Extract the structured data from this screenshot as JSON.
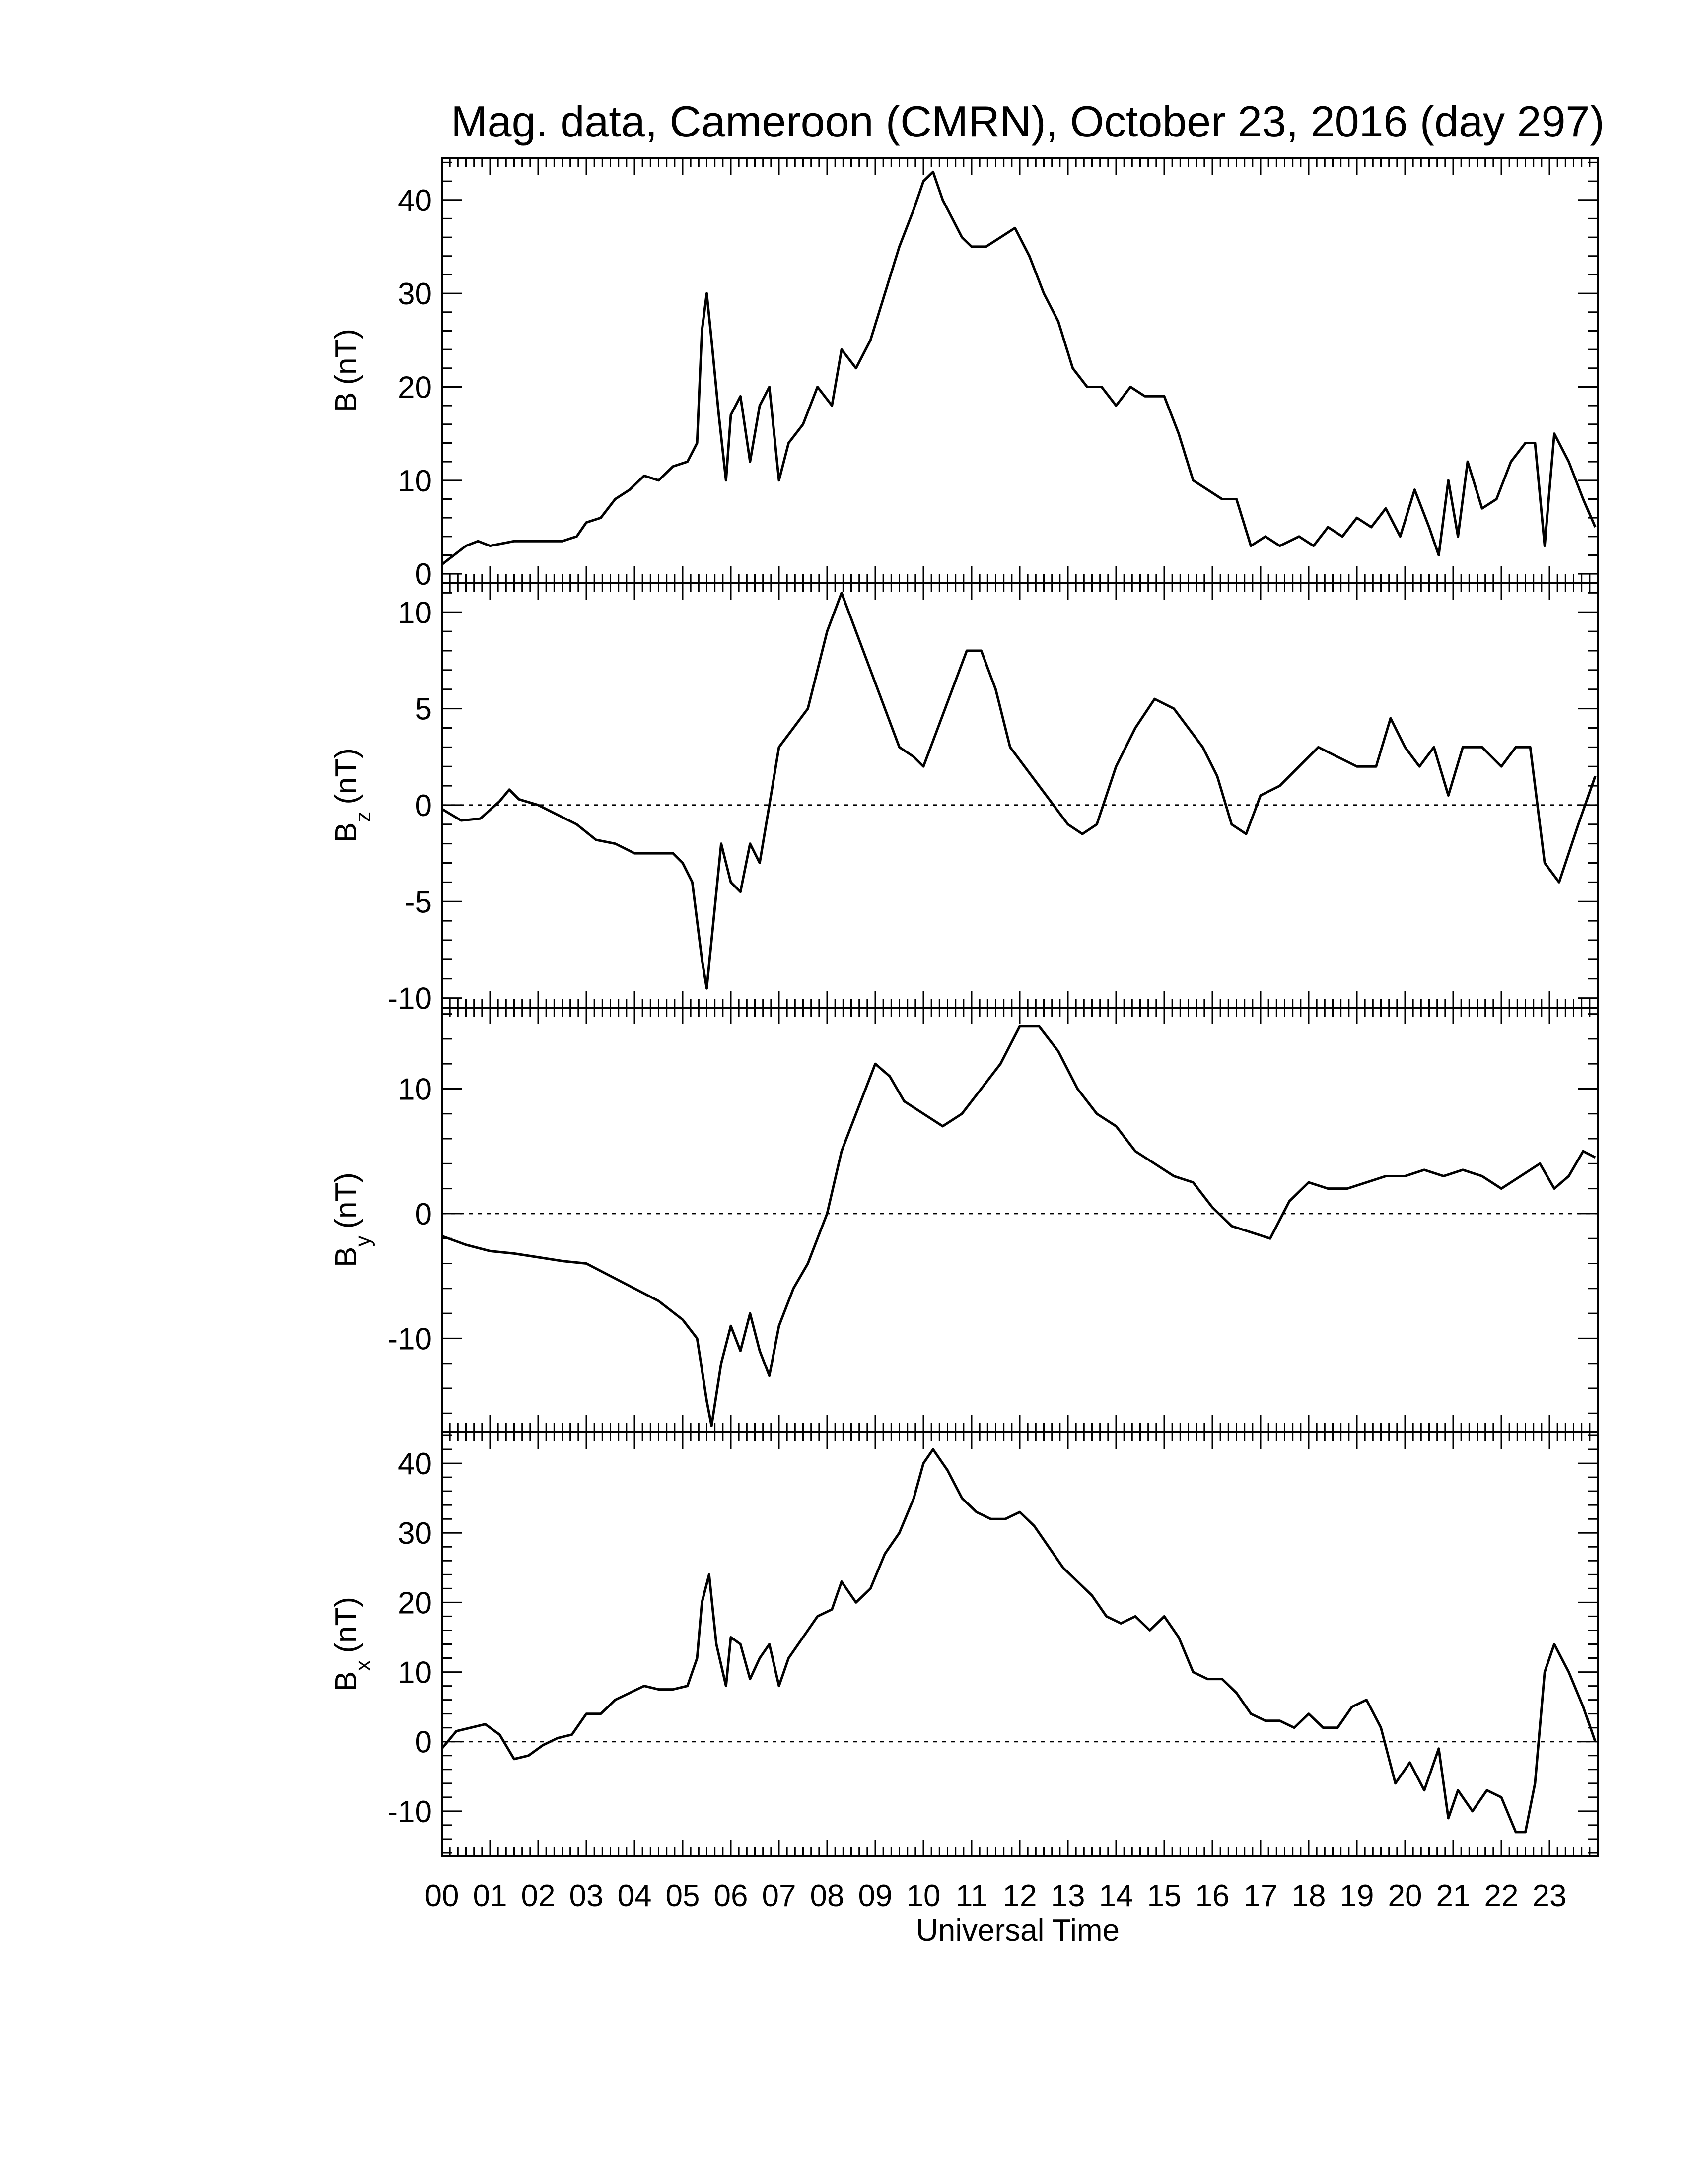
{
  "title": "Mag. data, Cameroon (CMRN), October 23, 2016 (day 297)",
  "colors": {
    "trace": "#000000",
    "frame": "#000000",
    "zero_line": "#000000",
    "background": "#ffffff"
  },
  "chart_data": [
    {
      "type": "line",
      "panel": "B",
      "ylabel": {
        "main": "B",
        "sub": "",
        "unit": "(nT)"
      },
      "ylim": [
        -1,
        44.5
      ],
      "yticks": [
        0,
        10,
        20,
        30,
        40
      ],
      "ytick_labels": [
        "0",
        "10",
        "20",
        "30",
        "40"
      ],
      "zero_line": false,
      "x": [
        0,
        0.25,
        0.5,
        0.75,
        1,
        1.5,
        2,
        2.5,
        2.8,
        3,
        3.3,
        3.6,
        3.9,
        4.2,
        4.5,
        4.8,
        5.1,
        5.3,
        5.4,
        5.5,
        5.6,
        5.75,
        5.9,
        6.0,
        6.2,
        6.4,
        6.6,
        6.8,
        7.0,
        7.2,
        7.5,
        7.8,
        8.1,
        8.3,
        8.6,
        8.9,
        9.2,
        9.5,
        9.8,
        10.0,
        10.2,
        10.4,
        10.6,
        10.8,
        11.0,
        11.3,
        11.6,
        11.9,
        12.2,
        12.5,
        12.8,
        13.1,
        13.4,
        13.7,
        14.0,
        14.3,
        14.6,
        15.0,
        15.3,
        15.6,
        15.9,
        16.2,
        16.5,
        16.8,
        17.1,
        17.4,
        17.8,
        18.1,
        18.4,
        18.7,
        19.0,
        19.3,
        19.6,
        19.9,
        20.2,
        20.5,
        20.7,
        20.9,
        21.1,
        21.3,
        21.6,
        21.9,
        22.2,
        22.5,
        22.7,
        22.9,
        23.1,
        23.4,
        23.7,
        23.95
      ],
      "y": [
        1,
        2,
        3,
        3.5,
        3,
        3.5,
        3.5,
        3.5,
        4,
        5.5,
        6,
        8,
        9,
        10.5,
        10,
        11.5,
        12,
        14,
        26,
        30,
        25,
        17,
        10,
        17,
        19,
        12,
        18,
        20,
        10,
        14,
        16,
        20,
        18,
        24,
        22,
        25,
        30,
        35,
        39,
        42,
        43,
        40,
        38,
        36,
        35,
        35,
        36,
        37,
        34,
        30,
        27,
        22,
        20,
        20,
        18,
        20,
        19,
        19,
        15,
        10,
        9,
        8,
        8,
        3,
        4,
        3,
        4,
        3,
        5,
        4,
        6,
        5,
        7,
        4,
        9,
        5,
        2,
        10,
        4,
        12,
        7,
        8,
        12,
        14,
        14,
        3,
        15,
        12,
        8,
        5
      ]
    },
    {
      "type": "line",
      "panel": "Bz",
      "ylabel": {
        "main": "B",
        "sub": "z",
        "unit": "(nT)"
      },
      "ylim": [
        -10.5,
        11.5
      ],
      "yticks": [
        -10,
        -5,
        0,
        5,
        10
      ],
      "ytick_labels": [
        "-10",
        "-5",
        "0",
        "5",
        "10"
      ],
      "zero_line": true,
      "x": [
        0,
        0.4,
        0.8,
        1.2,
        1.4,
        1.6,
        2.0,
        2.4,
        2.8,
        3.2,
        3.6,
        4.0,
        4.4,
        4.8,
        5.0,
        5.2,
        5.4,
        5.5,
        5.6,
        5.8,
        6.0,
        6.2,
        6.4,
        6.6,
        6.8,
        7.0,
        7.3,
        7.6,
        8.0,
        8.3,
        8.6,
        8.9,
        9.2,
        9.5,
        9.8,
        10.0,
        10.3,
        10.6,
        10.9,
        11.2,
        11.5,
        11.8,
        12.1,
        12.4,
        12.7,
        13.0,
        13.3,
        13.6,
        14.0,
        14.4,
        14.8,
        15.2,
        15.5,
        15.8,
        16.1,
        16.4,
        16.7,
        17.0,
        17.4,
        17.8,
        18.2,
        18.6,
        19.0,
        19.4,
        19.7,
        20.0,
        20.3,
        20.6,
        20.9,
        21.2,
        21.6,
        22.0,
        22.3,
        22.6,
        22.9,
        23.2,
        23.6,
        23.95
      ],
      "y": [
        -0.2,
        -0.8,
        -0.7,
        0.2,
        0.8,
        0.3,
        0,
        -0.5,
        -1,
        -1.8,
        -2,
        -2.5,
        -2.5,
        -2.5,
        -3,
        -4,
        -8,
        -9.5,
        -7,
        -2,
        -4,
        -4.5,
        -2,
        -3,
        0,
        3,
        4,
        5,
        9,
        11,
        9,
        7,
        5,
        3,
        2.5,
        2,
        4,
        6,
        8,
        8,
        6,
        3,
        2,
        1,
        0,
        -1,
        -1.5,
        -1,
        2,
        4,
        5.5,
        5,
        4,
        3,
        1.5,
        -1,
        -1.5,
        0.5,
        1,
        2,
        3,
        2.5,
        2,
        2,
        4.5,
        3,
        2,
        3,
        0.5,
        3,
        3,
        2,
        3,
        3,
        -3,
        -4,
        -1,
        1.5
      ]
    },
    {
      "type": "line",
      "panel": "By",
      "ylabel": {
        "main": "B",
        "sub": "y",
        "unit": "(nT)"
      },
      "ylim": [
        -17.5,
        16.5
      ],
      "yticks": [
        -10,
        0,
        10
      ],
      "ytick_labels": [
        "-10",
        "0",
        "10"
      ],
      "zero_line": true,
      "x": [
        0,
        0.5,
        1.0,
        1.5,
        2.0,
        2.5,
        3.0,
        3.5,
        4.0,
        4.5,
        5.0,
        5.3,
        5.5,
        5.6,
        5.8,
        6.0,
        6.2,
        6.4,
        6.6,
        6.8,
        7.0,
        7.3,
        7.6,
        8.0,
        8.3,
        8.6,
        9.0,
        9.3,
        9.6,
        10.0,
        10.4,
        10.8,
        11.2,
        11.6,
        12.0,
        12.4,
        12.8,
        13.2,
        13.6,
        14.0,
        14.4,
        14.8,
        15.2,
        15.6,
        16.0,
        16.4,
        16.8,
        17.2,
        17.6,
        18.0,
        18.4,
        18.8,
        19.2,
        19.6,
        20.0,
        20.4,
        20.8,
        21.2,
        21.6,
        22.0,
        22.4,
        22.8,
        23.1,
        23.4,
        23.7,
        23.95
      ],
      "y": [
        -1.8,
        -2.5,
        -3,
        -3.2,
        -3.5,
        -3.8,
        -4,
        -5,
        -6,
        -7,
        -8.5,
        -10,
        -15,
        -17,
        -12,
        -9,
        -11,
        -8,
        -11,
        -13,
        -9,
        -6,
        -4,
        0,
        5,
        8,
        12,
        11,
        9,
        8,
        7,
        8,
        10,
        12,
        15,
        15,
        13,
        10,
        8,
        7,
        5,
        4,
        3,
        2.5,
        0.5,
        -1,
        -1.5,
        -2,
        1,
        2.5,
        2,
        2,
        2.5,
        3,
        3,
        3.5,
        3,
        3.5,
        3,
        2,
        3,
        4,
        2,
        3,
        5,
        4.5
      ]
    },
    {
      "type": "line",
      "panel": "Bx",
      "ylabel": {
        "main": "B",
        "sub": "x",
        "unit": "(nT)"
      },
      "ylim": [
        -16.5,
        44.5
      ],
      "yticks": [
        -10,
        0,
        10,
        20,
        30,
        40
      ],
      "ytick_labels": [
        "-10",
        "0",
        "10",
        "20",
        "30",
        "40"
      ],
      "zero_line": true,
      "x": [
        0,
        0.3,
        0.6,
        0.9,
        1.2,
        1.5,
        1.8,
        2.1,
        2.4,
        2.7,
        3.0,
        3.3,
        3.6,
        3.9,
        4.2,
        4.5,
        4.8,
        5.1,
        5.3,
        5.4,
        5.55,
        5.7,
        5.9,
        6.0,
        6.2,
        6.4,
        6.6,
        6.8,
        7.0,
        7.2,
        7.5,
        7.8,
        8.1,
        8.3,
        8.6,
        8.9,
        9.2,
        9.5,
        9.8,
        10.0,
        10.2,
        10.5,
        10.8,
        11.1,
        11.4,
        11.7,
        12.0,
        12.3,
        12.6,
        12.9,
        13.2,
        13.5,
        13.8,
        14.1,
        14.4,
        14.7,
        15.0,
        15.3,
        15.6,
        15.9,
        16.2,
        16.5,
        16.8,
        17.1,
        17.4,
        17.7,
        18.0,
        18.3,
        18.6,
        18.9,
        19.2,
        19.5,
        19.8,
        20.1,
        20.4,
        20.7,
        20.9,
        21.1,
        21.4,
        21.7,
        22.0,
        22.3,
        22.5,
        22.7,
        22.9,
        23.1,
        23.4,
        23.7,
        23.95
      ],
      "y": [
        -1,
        1.5,
        2,
        2.5,
        1,
        -2.5,
        -2,
        -0.5,
        0.5,
        1,
        4,
        4,
        6,
        7,
        8,
        7.5,
        7.5,
        8,
        12,
        20,
        24,
        14,
        8,
        15,
        14,
        9,
        12,
        14,
        8,
        12,
        15,
        18,
        19,
        23,
        20,
        22,
        27,
        30,
        35,
        40,
        42,
        39,
        35,
        33,
        32,
        32,
        33,
        31,
        28,
        25,
        23,
        21,
        18,
        17,
        18,
        16,
        18,
        15,
        10,
        9,
        9,
        7,
        4,
        3,
        3,
        2,
        4,
        2,
        2,
        5,
        6,
        2,
        -6,
        -3,
        -7,
        -1,
        -11,
        -7,
        -10,
        -7,
        -8,
        -13,
        -13,
        -6,
        10,
        14,
        10,
        5,
        0
      ]
    }
  ],
  "x_axis": {
    "range": [
      0,
      24
    ],
    "tick_labels": [
      "00",
      "01",
      "02",
      "03",
      "04",
      "05",
      "06",
      "07",
      "08",
      "09",
      "10",
      "11",
      "12",
      "13",
      "14",
      "15",
      "16",
      "17",
      "18",
      "19",
      "20",
      "21",
      "22",
      "23"
    ],
    "xlabel": "Universal Time"
  }
}
